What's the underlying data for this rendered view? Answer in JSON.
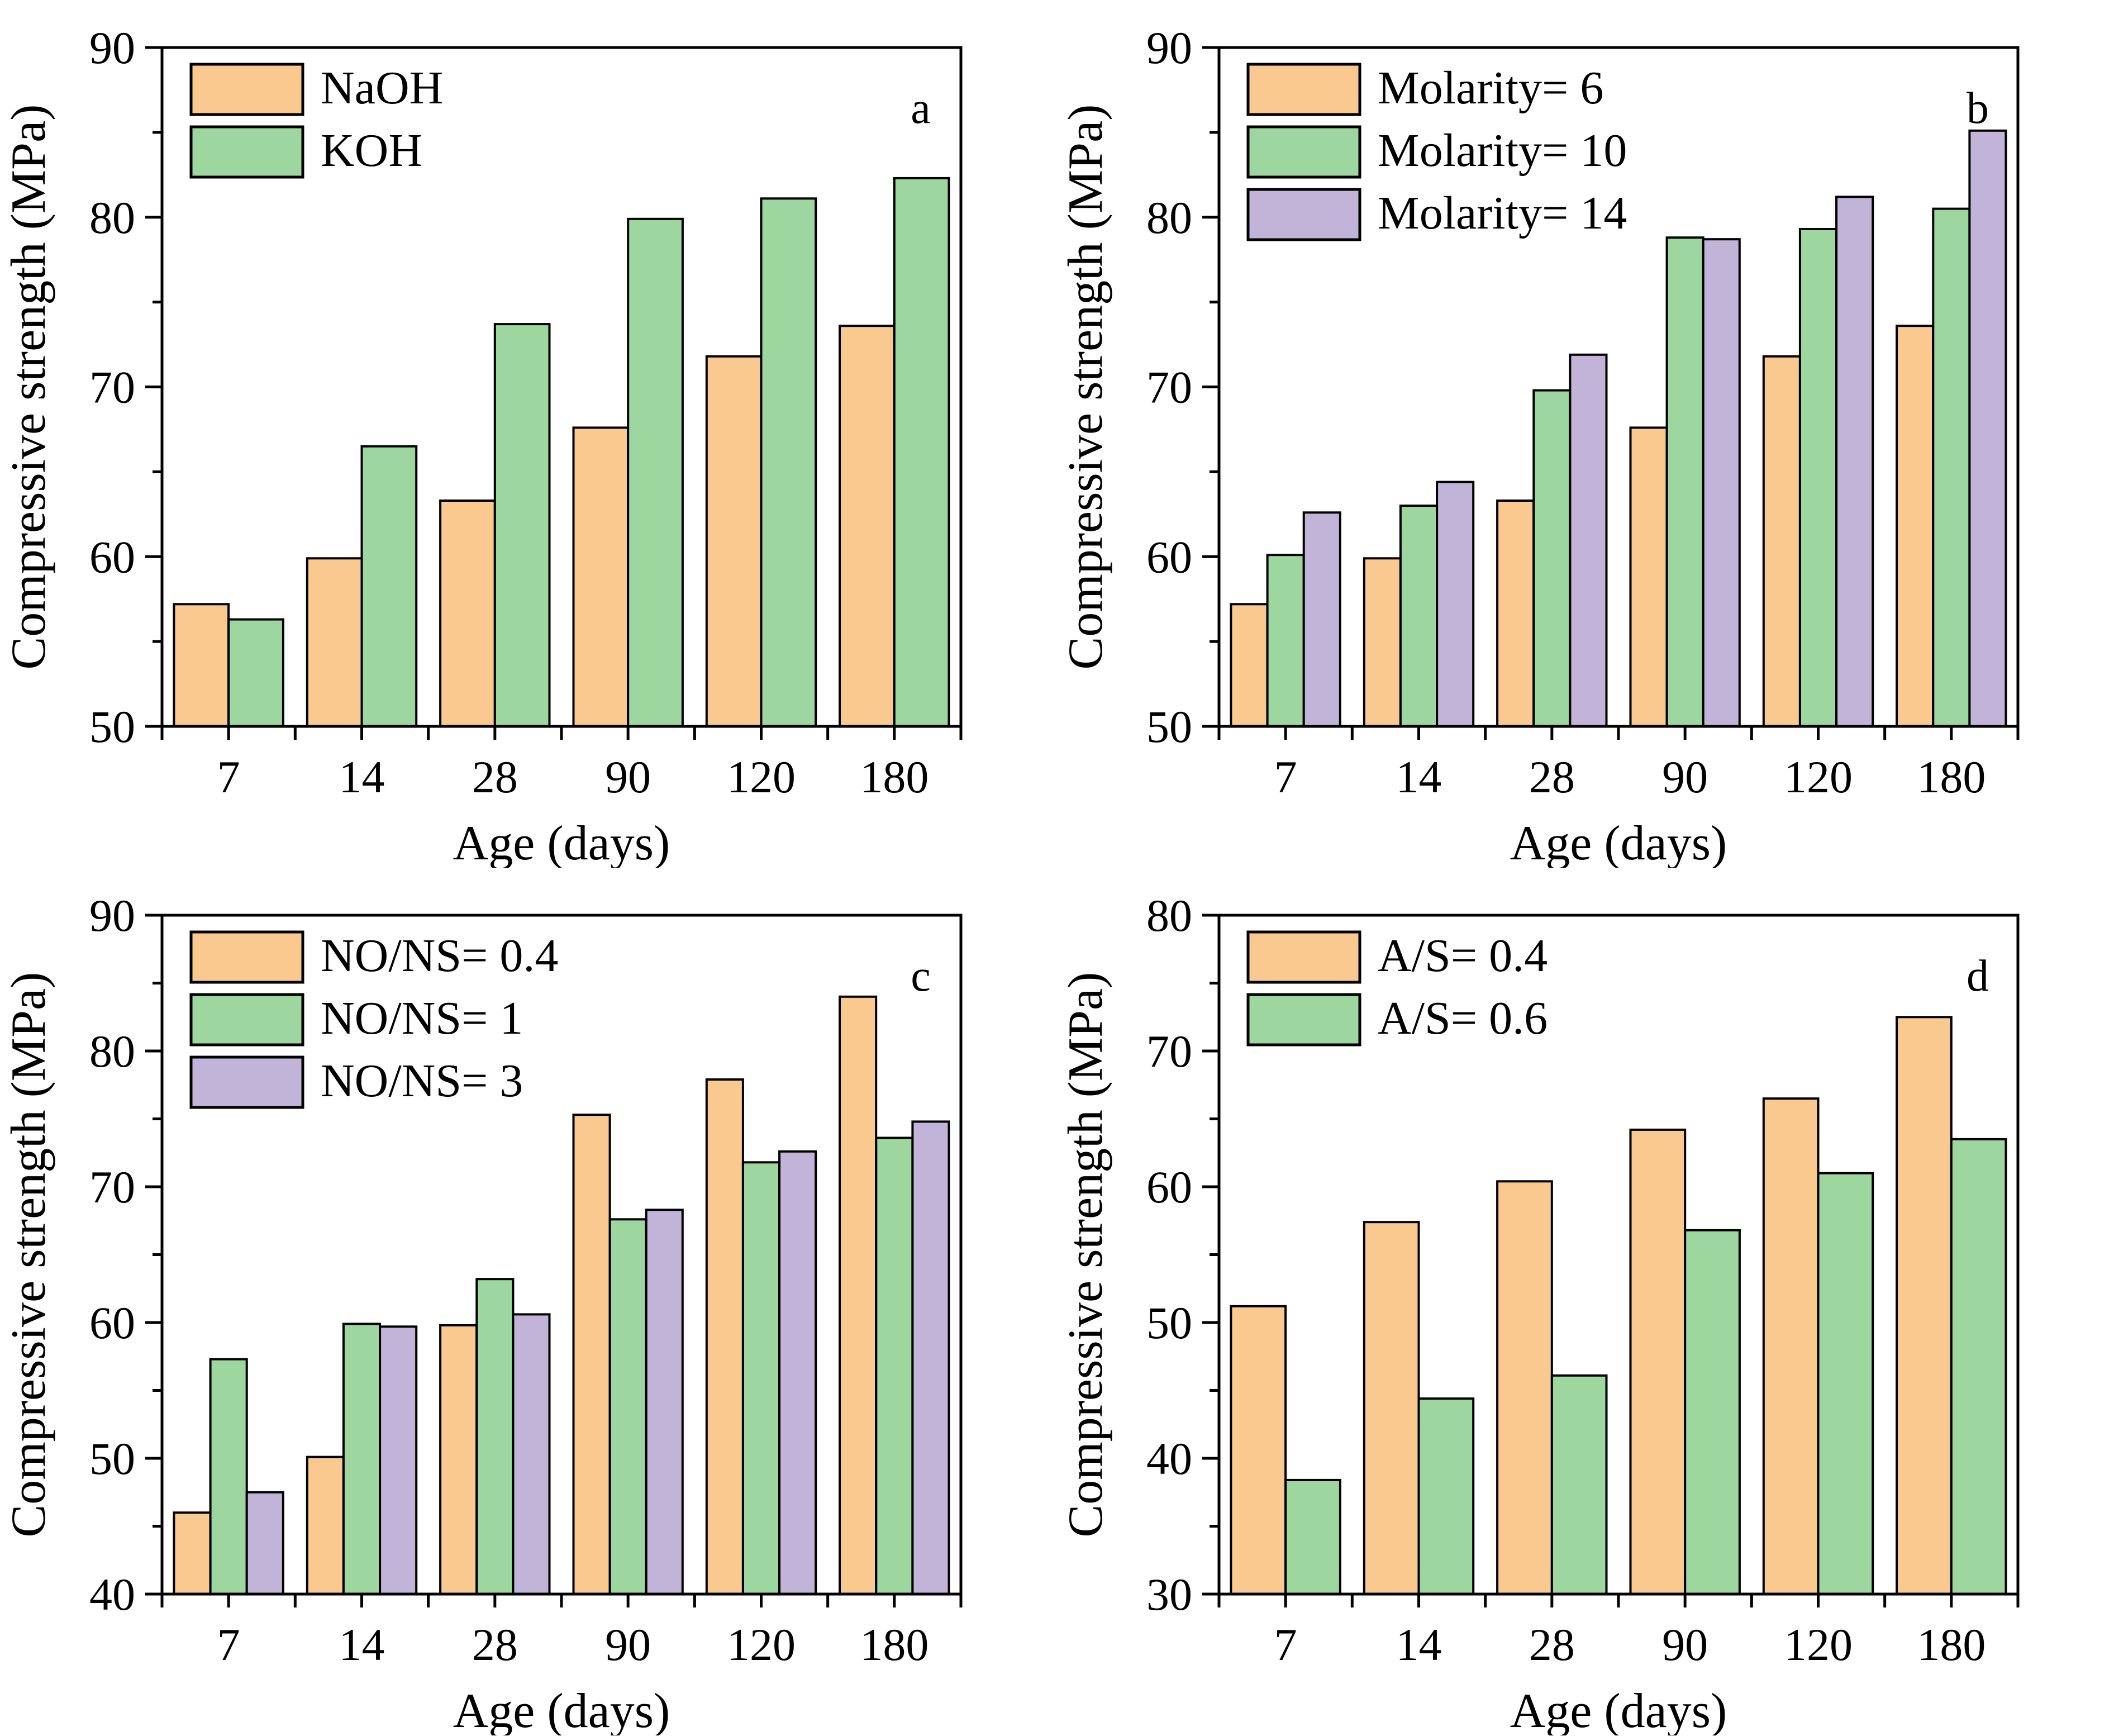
{
  "figure": {
    "description": "Compressive strength of geopolymer mixes versus curing age under four variable sets",
    "axis_color": "#000000",
    "background": "#ffffff"
  },
  "chart_data": [
    {
      "type": "bar",
      "panel_letter": "a",
      "title": "",
      "xlabel": "Age (days)",
      "ylabel": "Compressive strength (MPa)",
      "ylim": [
        50,
        90
      ],
      "yticks": [
        50,
        60,
        70,
        80,
        90
      ],
      "yminor": [
        55,
        65,
        75,
        85
      ],
      "categories": [
        "7",
        "14",
        "28",
        "90",
        "120",
        "180"
      ],
      "grid": false,
      "legend_position": "top-left",
      "series": [
        {
          "name": "NaOH",
          "color": "#FAC98F",
          "values": [
            57.2,
            59.9,
            63.3,
            67.6,
            71.8,
            73.6
          ]
        },
        {
          "name": "KOH",
          "color": "#9DD69E",
          "values": [
            56.3,
            66.5,
            73.7,
            79.9,
            81.1,
            82.3
          ]
        }
      ]
    },
    {
      "type": "bar",
      "panel_letter": "b",
      "title": "",
      "xlabel": "Age (days)",
      "ylabel": "Compressive strength (MPa)",
      "ylim": [
        50,
        90
      ],
      "yticks": [
        50,
        60,
        70,
        80,
        90
      ],
      "yminor": [
        55,
        65,
        75,
        85
      ],
      "categories": [
        "7",
        "14",
        "28",
        "90",
        "120",
        "180"
      ],
      "grid": false,
      "legend_position": "top-left",
      "series": [
        {
          "name": "Molarity= 6",
          "color": "#FAC98F",
          "values": [
            57.2,
            59.9,
            63.3,
            67.6,
            71.8,
            73.6
          ]
        },
        {
          "name": "Molarity= 10",
          "color": "#9DD69E",
          "values": [
            60.1,
            63.0,
            69.8,
            78.8,
            79.3,
            80.5
          ]
        },
        {
          "name": "Molarity= 14",
          "color": "#C2B4D8",
          "values": [
            62.6,
            64.4,
            71.9,
            78.7,
            81.2,
            85.1
          ]
        }
      ]
    },
    {
      "type": "bar",
      "panel_letter": "c",
      "title": "",
      "xlabel": "Age (days)",
      "ylabel": "Compressive strength (MPa)",
      "ylim": [
        40,
        90
      ],
      "yticks": [
        40,
        50,
        60,
        70,
        80,
        90
      ],
      "yminor": [
        45,
        55,
        65,
        75,
        85
      ],
      "categories": [
        "7",
        "14",
        "28",
        "90",
        "120",
        "180"
      ],
      "grid": false,
      "legend_position": "top-left",
      "series": [
        {
          "name": "NO/NS= 0.4",
          "color": "#FAC98F",
          "values": [
            46.0,
            50.1,
            59.8,
            75.3,
            77.9,
            84.0
          ]
        },
        {
          "name": "NO/NS= 1",
          "color": "#9DD69E",
          "values": [
            57.3,
            59.9,
            63.2,
            67.6,
            71.8,
            73.6
          ]
        },
        {
          "name": "NO/NS= 3",
          "color": "#C2B4D8",
          "values": [
            47.5,
            59.7,
            60.6,
            68.3,
            72.6,
            74.8
          ]
        }
      ]
    },
    {
      "type": "bar",
      "panel_letter": "d",
      "title": "",
      "xlabel": "Age (days)",
      "ylabel": "Compressive strength (MPa)",
      "ylim": [
        30,
        80
      ],
      "yticks": [
        30,
        40,
        50,
        60,
        70,
        80
      ],
      "yminor": [
        35,
        45,
        55,
        65,
        75
      ],
      "categories": [
        "7",
        "14",
        "28",
        "90",
        "120",
        "180"
      ],
      "grid": false,
      "legend_position": "top-left",
      "series": [
        {
          "name": "A/S= 0.4",
          "color": "#FAC98F",
          "values": [
            51.2,
            57.4,
            60.4,
            64.2,
            66.5,
            72.5
          ]
        },
        {
          "name": "A/S= 0.6",
          "color": "#9DD69E",
          "values": [
            38.4,
            44.4,
            46.1,
            56.8,
            61.0,
            63.5
          ]
        }
      ]
    }
  ]
}
